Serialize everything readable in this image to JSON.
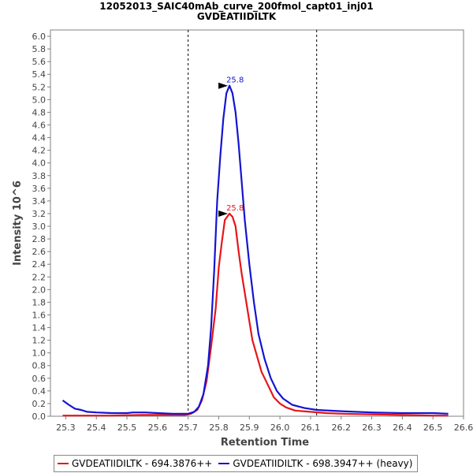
{
  "chart_data": {
    "type": "line",
    "title": "12052013_SAIC40mAb_curve_200fmol_capt01_inj01",
    "subtitle": "GVDEATIIDILTK",
    "xlabel": "Retention Time",
    "ylabel": "Intensity 10^6",
    "xlim": [
      25.25,
      26.6
    ],
    "ylim": [
      0.0,
      6.1
    ],
    "xticks": [
      "25.3",
      "25.4",
      "25.5",
      "25.6",
      "25.7",
      "25.8",
      "25.9",
      "26.0",
      "26.1",
      "26.2",
      "26.3",
      "26.4",
      "26.5",
      "26.6"
    ],
    "yticks": [
      "0.0",
      "0.2",
      "0.4",
      "0.6",
      "0.8",
      "1.0",
      "1.2",
      "1.4",
      "1.6",
      "1.8",
      "2.0",
      "2.2",
      "2.4",
      "2.6",
      "2.8",
      "3.0",
      "3.2",
      "3.4",
      "3.6",
      "3.8",
      "4.0",
      "4.2",
      "4.4",
      "4.6",
      "4.8",
      "5.0",
      "5.2",
      "5.4",
      "5.6",
      "5.8",
      "6.0"
    ],
    "integration_bounds": [
      25.7,
      26.12
    ],
    "series": [
      {
        "name": "GVDEATIIDILTK - 694.3876++",
        "color": "#e8141a",
        "peak_label": "25.8",
        "peak": {
          "x": 25.835,
          "y": 3.2
        },
        "points": [
          [
            25.29,
            0.01
          ],
          [
            25.35,
            0.01
          ],
          [
            25.45,
            0.01
          ],
          [
            25.55,
            0.02
          ],
          [
            25.6,
            0.02
          ],
          [
            25.65,
            0.02
          ],
          [
            25.69,
            0.02
          ],
          [
            25.71,
            0.04
          ],
          [
            25.73,
            0.1
          ],
          [
            25.745,
            0.25
          ],
          [
            25.76,
            0.55
          ],
          [
            25.775,
            1.1
          ],
          [
            25.79,
            1.7
          ],
          [
            25.8,
            2.35
          ],
          [
            25.81,
            2.75
          ],
          [
            25.82,
            3.1
          ],
          [
            25.835,
            3.2
          ],
          [
            25.845,
            3.15
          ],
          [
            25.855,
            3.0
          ],
          [
            25.865,
            2.6
          ],
          [
            25.875,
            2.25
          ],
          [
            25.885,
            1.95
          ],
          [
            25.9,
            1.5
          ],
          [
            25.91,
            1.2
          ],
          [
            25.925,
            0.95
          ],
          [
            25.94,
            0.7
          ],
          [
            25.96,
            0.5
          ],
          [
            25.98,
            0.3
          ],
          [
            26.0,
            0.2
          ],
          [
            26.02,
            0.14
          ],
          [
            26.05,
            0.09
          ],
          [
            26.1,
            0.07
          ],
          [
            26.15,
            0.05
          ],
          [
            26.2,
            0.04
          ],
          [
            26.3,
            0.03
          ],
          [
            26.4,
            0.02
          ],
          [
            26.5,
            0.01
          ],
          [
            26.55,
            0.01
          ]
        ]
      },
      {
        "name": "GVDEATIIDILTK - 698.3947++ (heavy)",
        "color": "#1414d2",
        "peak_label": "25.8",
        "peak": {
          "x": 25.835,
          "y": 5.22
        },
        "points": [
          [
            25.29,
            0.25
          ],
          [
            25.31,
            0.18
          ],
          [
            25.33,
            0.12
          ],
          [
            25.35,
            0.1
          ],
          [
            25.37,
            0.07
          ],
          [
            25.4,
            0.06
          ],
          [
            25.45,
            0.05
          ],
          [
            25.5,
            0.05
          ],
          [
            25.52,
            0.06
          ],
          [
            25.56,
            0.06
          ],
          [
            25.6,
            0.05
          ],
          [
            25.65,
            0.04
          ],
          [
            25.7,
            0.04
          ],
          [
            25.72,
            0.07
          ],
          [
            25.735,
            0.15
          ],
          [
            25.75,
            0.35
          ],
          [
            25.765,
            0.8
          ],
          [
            25.775,
            1.4
          ],
          [
            25.785,
            2.3
          ],
          [
            25.795,
            3.4
          ],
          [
            25.805,
            4.1
          ],
          [
            25.815,
            4.7
          ],
          [
            25.825,
            5.1
          ],
          [
            25.835,
            5.22
          ],
          [
            25.845,
            5.1
          ],
          [
            25.855,
            4.8
          ],
          [
            25.865,
            4.3
          ],
          [
            25.875,
            3.7
          ],
          [
            25.885,
            3.1
          ],
          [
            25.9,
            2.4
          ],
          [
            25.915,
            1.8
          ],
          [
            25.93,
            1.3
          ],
          [
            25.95,
            0.9
          ],
          [
            25.97,
            0.6
          ],
          [
            25.99,
            0.4
          ],
          [
            26.01,
            0.28
          ],
          [
            26.04,
            0.18
          ],
          [
            26.08,
            0.13
          ],
          [
            26.12,
            0.1
          ],
          [
            26.2,
            0.08
          ],
          [
            26.3,
            0.06
          ],
          [
            26.4,
            0.05
          ],
          [
            26.5,
            0.05
          ],
          [
            26.55,
            0.04
          ]
        ]
      }
    ],
    "legend_position": "bottom"
  }
}
